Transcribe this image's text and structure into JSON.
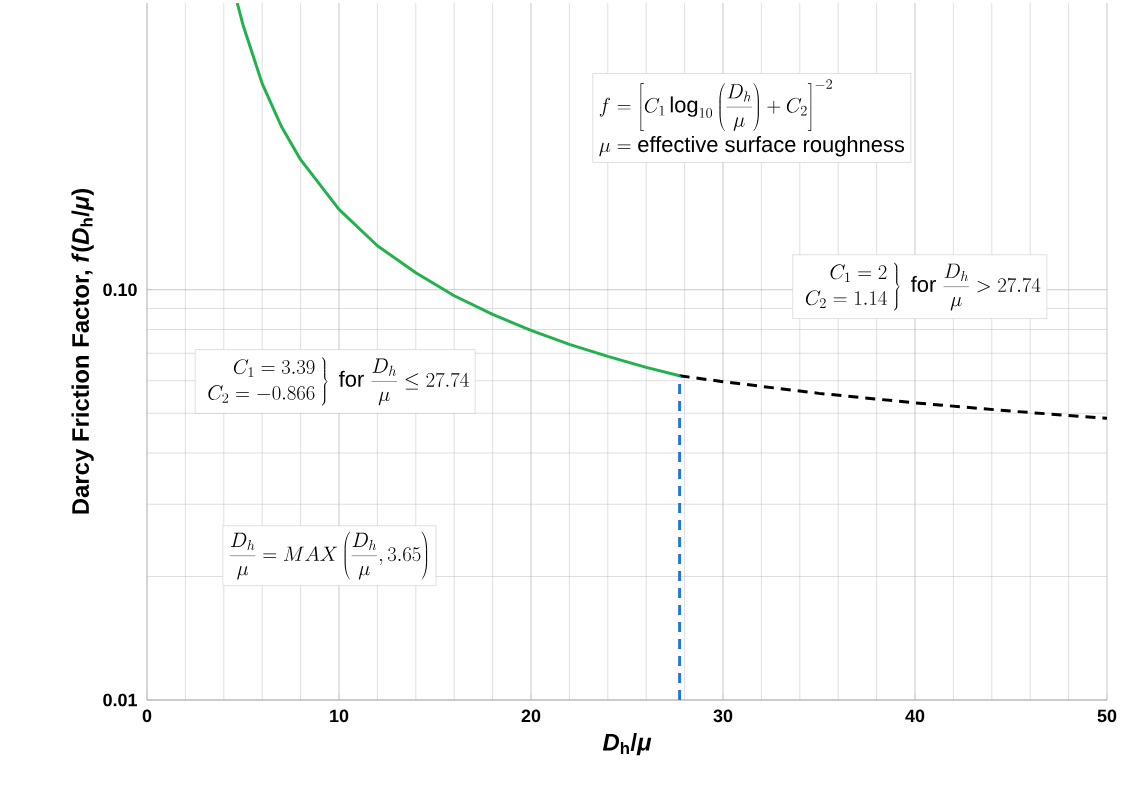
{
  "chart_data": {
    "type": "line",
    "xlabel": "*D*$_{h}$/*μ*",
    "ylabel": "Darcy Friction Factor, *f*(*D*$_{h}$/*μ*)",
    "xlim": [
      0,
      50
    ],
    "ylim": [
      0.01,
      0.5
    ],
    "xticks": [
      0,
      10,
      20,
      30,
      40,
      50
    ],
    "yticks": [
      0.01,
      {
        "value": 0.1,
        "label": "0.10"
      }
    ],
    "log": "y",
    "grid": true,
    "annotations": [
      "f = \\left[C_1 \\log_{10}\\left(\\frac{D_h}{\\mu}\\right) + C_2\\right]^{-2}",
      "\\mu = \\textrm{effective surface roughness}",
      "\\left.\\begin{array}{r}C_1 = 2\\\\ C_2 = 1.14\\end{array}\\right\\}\\ \\textrm{for}\\ \\frac{D_h}{\\mu} > 27.74",
      "\\left.\\begin{array}{r}C_1 = 3.39\\\\ C_2 = -0.866\\end{array}\\right\\}\\ \\textrm{for}\\ \\frac{D_h}{\\mu} \\le 27.74",
      "\\frac{D_h}{\\mu} = MAX\\left(\\frac{D_h}{\\mu}, 3.65\\right)"
    ],
    "series": [
      {
        "color": "#22b14c",
        "line_style": "solid",
        "x": [
          4.7,
          5,
          6,
          7,
          8,
          10,
          12,
          14,
          16,
          18,
          20,
          22,
          24,
          26,
          27.74
        ],
        "values": [
          0.5,
          0.442,
          0.318,
          0.25,
          0.2075,
          0.157,
          0.128,
          0.11,
          0.0967,
          0.0871,
          0.0796,
          0.0736,
          0.0688,
          0.0647,
          0.0617
        ]
      },
      {
        "color": "#000000",
        "line_style": "dashed",
        "x": [
          27.74,
          30,
          35,
          40,
          45,
          50
        ],
        "values": [
          0.0617,
          0.0597,
          0.0559,
          0.053,
          0.0506,
          0.0486
        ]
      },
      {
        "color": "#1f78d1",
        "line_style": "dashed",
        "x": [
          27.74,
          27.74
        ],
        "values": [
          0.01,
          0.0617
        ]
      }
    ]
  }
}
